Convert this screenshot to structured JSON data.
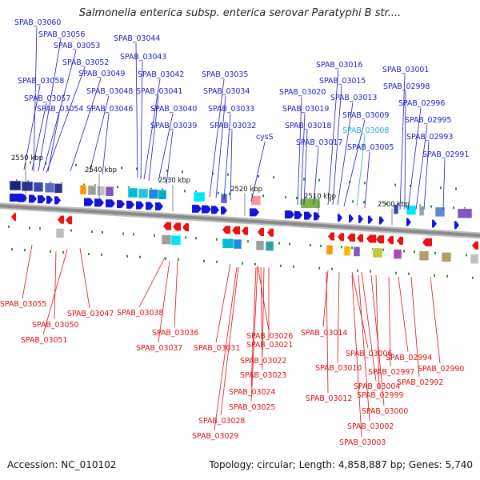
{
  "title": "Salmonella enterica subsp. enterica serovar Paratyphi B str....",
  "footer": {
    "accession": "Accession: NC_010102",
    "summary": "Topology: circular; Length: 4,858,887 bp; Genes: 5,740"
  },
  "colors": {
    "forward_label": "#1a1acc",
    "reverse_label": "#dd1111",
    "highlight_label": "#22aadd",
    "backbone": "#888888"
  },
  "kbp_labels": [
    "2550 kbp",
    "2540 kbp",
    "2530 kbp",
    "2520 kbp",
    "2510 kbp",
    "2500 kbp"
  ],
  "forward_labels": [
    "SPAB_03060",
    "SPAB_03056",
    "SPAB_03053",
    "SPAB_03052",
    "SPAB_03058",
    "SPAB_03049",
    "SPAB_03057",
    "SPAB_03054",
    "SPAB_03048",
    "SPAB_03046",
    "SPAB_03044",
    "SPAB_03043",
    "SPAB_03042",
    "SPAB_03041",
    "SPAB_03040",
    "SPAB_03039",
    "SPAB_03035",
    "SPAB_03034",
    "SPAB_03033",
    "SPAB_03032",
    "cysS",
    "SPAB_03016",
    "SPAB_03015",
    "SPAB_03020",
    "SPAB_03013",
    "SPAB_03019",
    "SPAB_03009",
    "SPAB_03018",
    "SPAB_03008",
    "SPAB_03017",
    "SPAB_03005",
    "SPAB_03001",
    "SPAB_02998",
    "SPAB_02996",
    "SPAB_02995",
    "SPAB_02993",
    "SPAB_02991"
  ],
  "reverse_labels": [
    "SPAB_03055",
    "SPAB_03047",
    "SPAB_03038",
    "SPAB_03050",
    "SPAB_03051",
    "SPAB_03036",
    "SPAB_03037",
    "SPAB_03031",
    "SPAB_03026",
    "SPAB_03021",
    "SPAB_03022",
    "SPAB_03023",
    "SPAB_03024",
    "SPAB_03025",
    "SPAB_03028",
    "SPAB_03029",
    "SPAB_03014",
    "SPAB_03006",
    "SPAB_03010",
    "SPAB_03004",
    "SPAB_03012",
    "SPAB_02994",
    "SPAB_02997",
    "SPAB_02992",
    "SPAB_02990",
    "SPAB_02999",
    "SPAB_03000",
    "SPAB_03002",
    "SPAB_03003"
  ]
}
